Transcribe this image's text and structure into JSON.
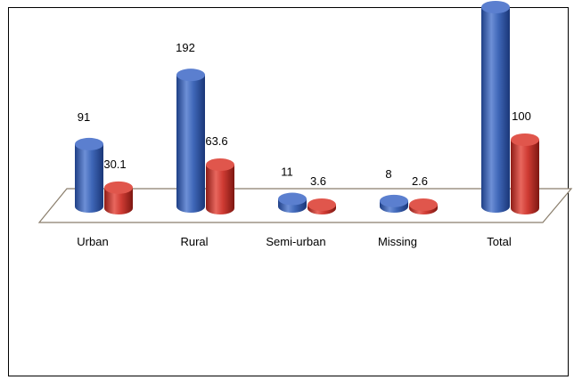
{
  "chart_data": {
    "type": "bar",
    "style": "3d-cylinder",
    "categories": [
      "Urban",
      "Rural",
      "Semi-urban",
      "Missing",
      "Total"
    ],
    "series": [
      {
        "values": [
          91,
          192,
          11,
          8,
          302
        ],
        "labels": [
          "91",
          "192",
          "11",
          "8",
          ""
        ],
        "color": "#3f67b8"
      },
      {
        "values": [
          30.1,
          63.6,
          3.6,
          2.6,
          100
        ],
        "labels": [
          "30.1",
          "63.6",
          "3.6",
          "2.6",
          "100"
        ],
        "color": "#cf3b33"
      }
    ],
    "title": "",
    "xlabel": "",
    "ylabel": "",
    "grid": false,
    "legend": "none"
  }
}
